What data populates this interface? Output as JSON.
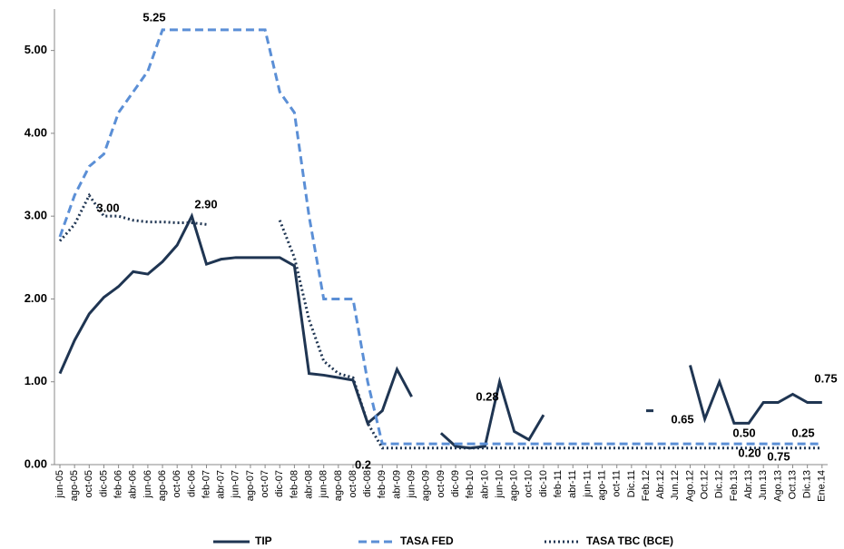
{
  "chart_data": {
    "type": "line",
    "categories": [
      "jun-05",
      "ago-05",
      "oct-05",
      "dic-05",
      "feb-06",
      "abr-06",
      "jun-06",
      "ago-06",
      "oct-06",
      "dic-06",
      "feb-07",
      "abr-07",
      "jun-07",
      "ago-07",
      "oct-07",
      "dic-07",
      "feb-08",
      "abr-08",
      "jun-08",
      "ago-08",
      "oct-08",
      "dic-08",
      "feb-09",
      "abr-09",
      "jun-09",
      "ago-09",
      "oct-09",
      "dic-09",
      "feb-10",
      "abr-10",
      "jun-10",
      "ago-10",
      "oct-10",
      "dic-10",
      "feb-11",
      "abr-11",
      "jun-11",
      "ago-11",
      "oct-11",
      "Dic.11",
      "Feb.12",
      "Abr.12",
      "Jun.12",
      "Ago.12",
      "Oct.12",
      "Dic.12",
      "Feb.13",
      "Abr.13",
      "Jun.13",
      "Ago.13",
      "Oct.13",
      "Dic.13",
      "Ene.14"
    ],
    "series": [
      {
        "name": "TIP",
        "color": "#1f3552",
        "style": "solid",
        "values": [
          1.1,
          1.5,
          1.82,
          2.02,
          2.15,
          2.33,
          2.3,
          2.45,
          2.65,
          3.0,
          2.42,
          2.48,
          2.5,
          2.5,
          2.5,
          2.5,
          2.4,
          1.1,
          1.08,
          1.05,
          1.02,
          0.5,
          0.65,
          1.15,
          0.82,
          null,
          0.38,
          0.22,
          0.2,
          0.22,
          1.0,
          0.4,
          0.3,
          0.6,
          null,
          null,
          null,
          null,
          null,
          null,
          0.65,
          null,
          null,
          1.2,
          0.55,
          1.0,
          0.5,
          0.5,
          0.75,
          0.75,
          0.85,
          0.75,
          0.75
        ]
      },
      {
        "name": "TASA FED",
        "color": "#5b8fd6",
        "style": "dashed",
        "values": [
          2.75,
          3.25,
          3.6,
          3.75,
          4.25,
          4.5,
          4.75,
          5.25,
          5.25,
          5.25,
          5.25,
          5.25,
          5.25,
          5.25,
          5.25,
          4.5,
          4.25,
          3.0,
          2.0,
          2.0,
          2.0,
          1.0,
          0.25,
          0.25,
          0.25,
          0.25,
          0.25,
          0.25,
          0.25,
          0.25,
          0.25,
          0.25,
          0.25,
          0.25,
          0.25,
          0.25,
          0.25,
          0.25,
          0.25,
          0.25,
          0.25,
          0.25,
          0.25,
          0.25,
          0.25,
          0.25,
          0.25,
          0.25,
          0.25,
          0.25,
          0.25,
          0.25,
          0.25
        ]
      },
      {
        "name": "TASA TBC (BCE)",
        "color": "#1f3552",
        "style": "dotted",
        "values": [
          2.7,
          2.9,
          3.25,
          3.0,
          3.0,
          2.95,
          2.93,
          2.93,
          2.92,
          2.92,
          2.9,
          null,
          null,
          null,
          null,
          2.95,
          2.5,
          1.75,
          1.25,
          1.1,
          1.05,
          0.5,
          0.2,
          0.2,
          0.2,
          0.2,
          0.2,
          0.2,
          0.2,
          0.2,
          0.2,
          0.2,
          0.2,
          0.2,
          0.2,
          0.2,
          0.2,
          0.2,
          0.2,
          0.2,
          0.2,
          0.2,
          0.2,
          0.2,
          0.2,
          0.2,
          0.2,
          0.2,
          0.2,
          0.2,
          0.2,
          0.2,
          0.2
        ]
      }
    ],
    "annotations": [
      "5.25",
      "3.00",
      "2.90",
      "0.2",
      "0.28",
      "0.65",
      "0.50",
      "0.20",
      "0.75",
      "0.25",
      "0.75"
    ],
    "ylim": [
      0,
      5.5
    ],
    "yticks": [
      {
        "value": 0,
        "label": "0.00"
      },
      {
        "value": 1,
        "label": "1.00"
      },
      {
        "value": 2,
        "label": "2.00"
      },
      {
        "value": 3,
        "label": "3.00"
      },
      {
        "value": 4,
        "label": "4.00"
      },
      {
        "value": 5,
        "label": "5.00"
      }
    ],
    "legend": "bottom"
  }
}
